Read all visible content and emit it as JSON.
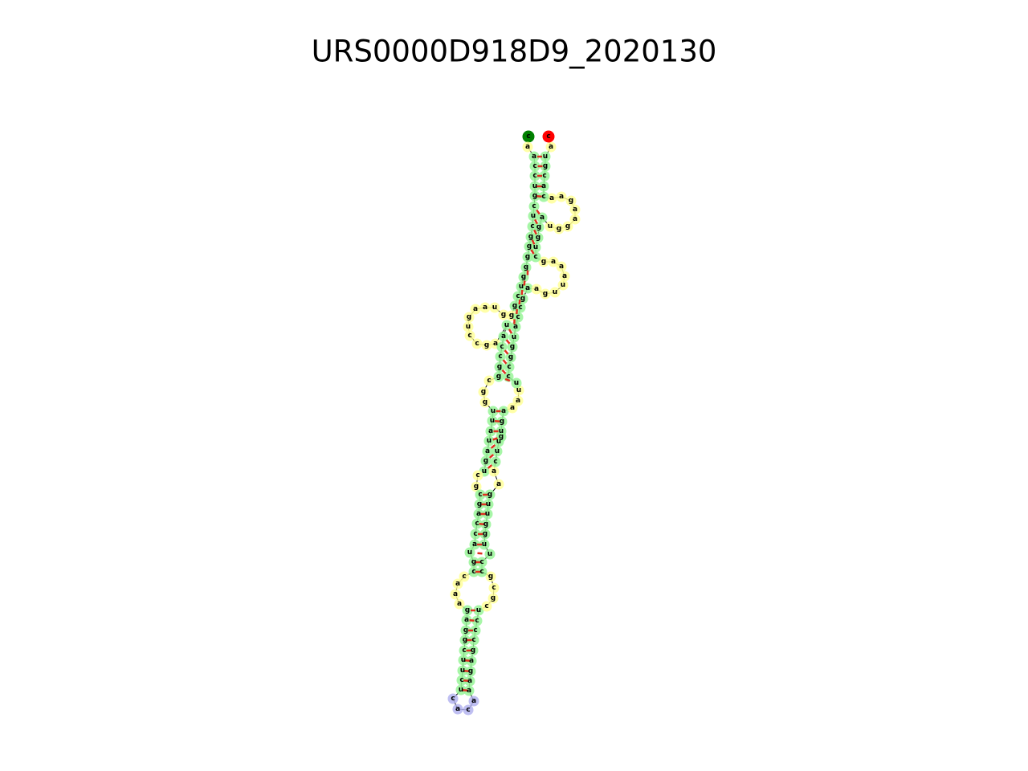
{
  "title": "URS0000D918D9_2020130",
  "nucleotides": [
    "c",
    "a",
    "a",
    "c",
    "c",
    "u",
    "g",
    "c",
    "u",
    "c",
    "g",
    "g",
    "g",
    "g",
    "g",
    "u",
    "c",
    "g",
    "g",
    "g",
    "u",
    "a",
    "a",
    "g",
    "u",
    "c",
    "c",
    "g",
    "a",
    "u",
    "a",
    "c",
    "c",
    "g",
    "g",
    "c",
    "g",
    "g",
    "u",
    "u",
    "a",
    "u",
    "a",
    "g",
    "u",
    "c",
    "g",
    "c",
    "g",
    "a",
    "c",
    "c",
    "a",
    "u",
    "g",
    "c",
    "c",
    "a",
    "a",
    "a",
    "g",
    "a",
    "g",
    "g",
    "c",
    "u",
    "u",
    "c",
    "u",
    "c",
    "a",
    "c",
    "a",
    "a",
    "a",
    "g",
    "a",
    "g",
    "c",
    "c",
    "c",
    "u",
    "c",
    "g",
    "c",
    "g",
    "c",
    "c",
    "u",
    "u",
    "g",
    "g",
    "u",
    "u",
    "g",
    "a",
    "a",
    "c",
    "u",
    "u",
    "g",
    "u",
    "g",
    "a",
    "a",
    "a",
    "u",
    "u",
    "c",
    "c",
    "g",
    "g",
    "u",
    "a",
    "c",
    "c",
    "g",
    "a",
    "a",
    "g",
    "u",
    "u",
    "a",
    "a",
    "a",
    "g",
    "c",
    "u",
    "g",
    "g",
    "a",
    "u",
    "g",
    "g",
    "a",
    "a",
    "g",
    "a",
    "a",
    "c",
    "a",
    "c",
    "g",
    "u",
    "a",
    "c"
  ]
}
